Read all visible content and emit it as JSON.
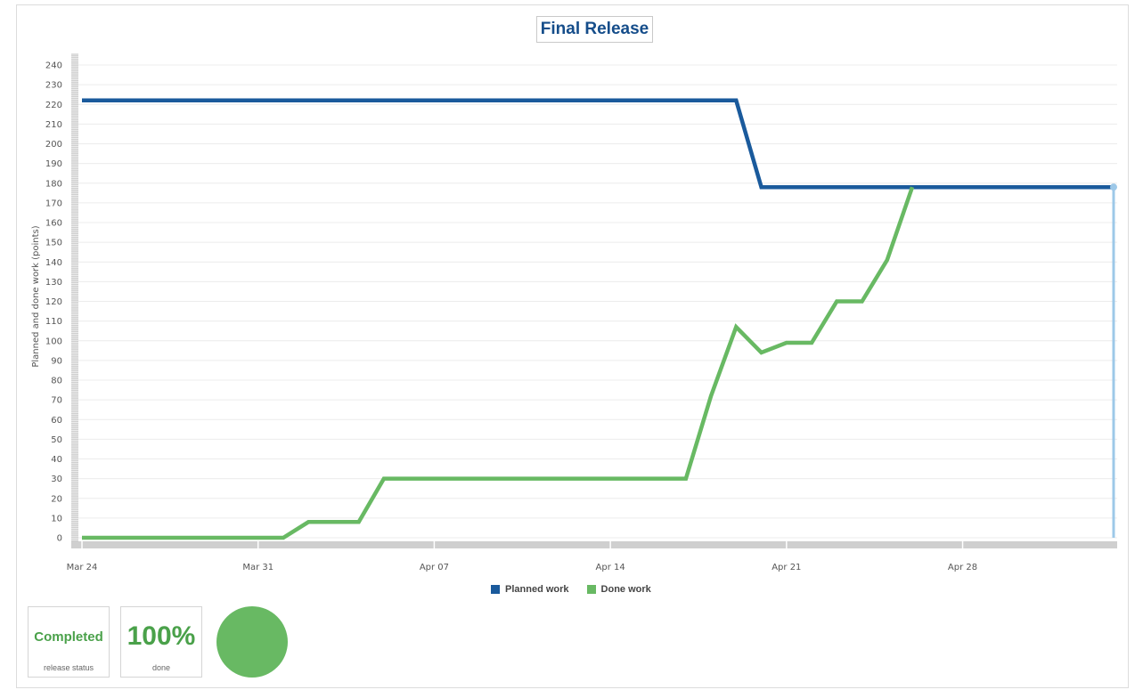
{
  "title": "Final Release",
  "chart_data": {
    "type": "line",
    "title": "Final Release",
    "xlabel": "",
    "ylabel": "Planned and done work (points)",
    "x_ticks": [
      "Mar 24",
      "Mar 31",
      "Apr 07",
      "Apr 14",
      "Apr 21",
      "Apr 28"
    ],
    "y_ticks": [
      "0",
      "10",
      "20",
      "30",
      "40",
      "50",
      "60",
      "70",
      "80",
      "90",
      "100",
      "110",
      "120",
      "130",
      "140",
      "150",
      "160",
      "170",
      "180",
      "190",
      "200",
      "210",
      "220",
      "230",
      "240"
    ],
    "ylim": [
      0,
      240
    ],
    "xlim": [
      "2025-03-24",
      "2025-05-04"
    ],
    "grid": true,
    "legend_position": "bottom",
    "series": [
      {
        "name": "Planned work",
        "color": "#1a5a9c",
        "points": [
          [
            "2025-03-24",
            222
          ],
          [
            "2025-04-19",
            222
          ],
          [
            "2025-04-20",
            178
          ],
          [
            "2025-05-04",
            178
          ]
        ]
      },
      {
        "name": "Done work",
        "color": "#68b963",
        "points": [
          [
            "2025-03-24",
            0
          ],
          [
            "2025-04-01",
            0
          ],
          [
            "2025-04-02",
            8
          ],
          [
            "2025-04-04",
            8
          ],
          [
            "2025-04-05",
            30
          ],
          [
            "2025-04-17",
            30
          ],
          [
            "2025-04-18",
            72
          ],
          [
            "2025-04-19",
            107
          ],
          [
            "2025-04-20",
            94
          ],
          [
            "2025-04-21",
            99
          ],
          [
            "2025-04-22",
            99
          ],
          [
            "2025-04-23",
            120
          ],
          [
            "2025-04-24",
            120
          ],
          [
            "2025-04-25",
            141
          ],
          [
            "2025-04-26",
            178
          ]
        ]
      }
    ],
    "marker": {
      "date": "2025-05-04",
      "value": 178,
      "color": "#9dc8e8"
    }
  },
  "legend": {
    "planned": "Planned work",
    "done": "Done work"
  },
  "colors": {
    "planned": "#1a5a9c",
    "done": "#68b963",
    "status": "#4aa14a"
  },
  "status_card": {
    "value": "Completed",
    "caption": "release status"
  },
  "progress_card": {
    "value": "100%",
    "caption": "done"
  },
  "progress_donut": {
    "fraction": 1.0,
    "color": "#68b963"
  }
}
